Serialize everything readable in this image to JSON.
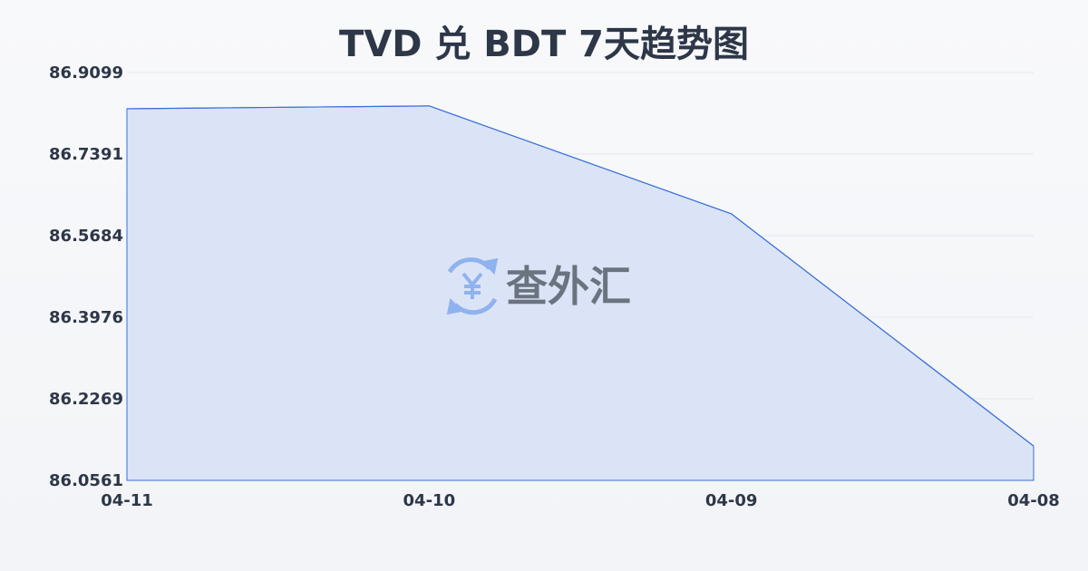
{
  "chart_data": {
    "type": "area",
    "title": "TVD 兑 BDT 7天趋势图",
    "categories": [
      "04-11",
      "04-10",
      "04-09",
      "04-08"
    ],
    "values": [
      86.834,
      86.84,
      86.614,
      86.128
    ],
    "yticks": [
      "86.0561",
      "86.2269",
      "86.3976",
      "86.5684",
      "86.7391",
      "86.9099"
    ],
    "ylim": [
      86.0561,
      86.9099
    ],
    "grid": true,
    "colors": {
      "line": "#3a6fd8",
      "fill": "#d6e1f6"
    }
  },
  "watermark": {
    "text": "查外汇",
    "icon": "yen-exchange-icon"
  }
}
